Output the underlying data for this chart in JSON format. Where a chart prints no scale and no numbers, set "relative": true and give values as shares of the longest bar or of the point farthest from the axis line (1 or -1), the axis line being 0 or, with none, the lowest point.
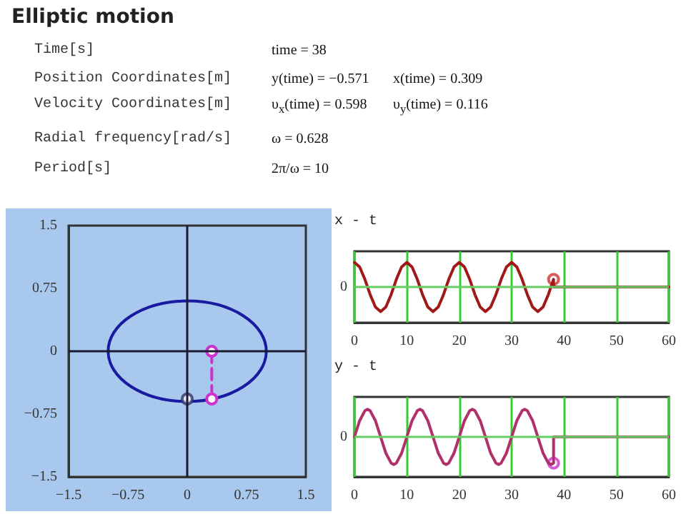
{
  "chart_data": [
    {
      "type": "other",
      "title": "Elliptic motion",
      "annotations": [
        "Time[s]",
        "time = 38",
        "Position Coordinates[m]",
        "y(time) = −0.571",
        "x(time) = 0.309",
        "Velocity Coordinates[m]",
        "υ$_{x}$(time) = 0.598",
        "υ$_{y}$(time) = 0.116",
        "Radial frequency[rad/s]",
        "ω = 0.628",
        "Period[s]",
        "2π/ω = 10"
      ]
    },
    {
      "type": "line",
      "xlim": [
        -1.5,
        1.5
      ],
      "xticks": [
        -1.5,
        -0.75,
        0,
        0.75,
        1.5
      ],
      "ylim": [
        -1.5,
        1.5
      ],
      "yticks": [
        -1.5,
        -0.75,
        0,
        0.75,
        1.5
      ],
      "grid": false,
      "ref_lines": [
        {
          "axis": "x",
          "value": 0,
          "color": "#1a1a33"
        },
        {
          "axis": "y",
          "value": 0,
          "color": "#1a1a33"
        }
      ],
      "series": [
        {
          "color": "#cc33cc",
          "marker": "circle",
          "line_style": "dashed",
          "x": [
            0.31,
            0.31
          ],
          "values": [
            0,
            -0.57
          ]
        },
        {
          "type": "scatter",
          "color": "#333366",
          "marker": "circle",
          "x": [
            0
          ],
          "values": [
            -0.57
          ]
        }
      ]
    },
    {
      "type": "line",
      "title": "x - t",
      "relative": true,
      "xlim": [
        0,
        60
      ],
      "xticks": [
        0,
        10,
        20,
        30,
        40,
        50,
        60
      ],
      "grid": "x",
      "tick_labels": "x",
      "ref_lines": [
        {
          "axis": "y",
          "value": 0,
          "label": "0",
          "color": "#66cc66"
        }
      ],
      "series": [
        {
          "color": "#a01818",
          "marker": "none",
          "x": [
            0,
            1,
            2,
            3,
            4,
            5,
            6,
            7,
            8,
            9,
            10,
            11,
            12,
            13,
            14,
            15,
            16,
            17,
            18,
            19,
            20,
            21,
            22,
            23,
            24,
            25,
            26,
            27,
            28,
            29,
            30,
            31,
            32,
            33,
            34,
            35,
            36,
            37,
            38,
            38,
            60
          ],
          "values": [
            1,
            0.81,
            0.31,
            -0.31,
            -0.81,
            -1,
            -0.81,
            -0.31,
            0.31,
            0.81,
            1,
            0.81,
            0.31,
            -0.31,
            -0.81,
            -1,
            -0.81,
            -0.31,
            0.31,
            0.81,
            1,
            0.81,
            0.31,
            -0.31,
            -0.81,
            -1,
            -0.81,
            -0.31,
            0.31,
            0.81,
            1,
            0.81,
            0.31,
            -0.31,
            -0.81,
            -1,
            -0.81,
            -0.31,
            0.31,
            0,
            0
          ]
        },
        {
          "type": "scatter",
          "color": "#cc3333",
          "marker": "circle",
          "x": [
            38
          ],
          "values": [
            0.31
          ]
        }
      ]
    },
    {
      "type": "line",
      "title": "y - t",
      "relative": true,
      "xlim": [
        0,
        60
      ],
      "xticks": [
        0,
        10,
        20,
        30,
        40,
        50,
        60
      ],
      "grid": "x",
      "tick_labels": "x",
      "ref_lines": [
        {
          "axis": "y",
          "value": 0,
          "label": "0",
          "color": "#66cc66"
        }
      ],
      "series": [
        {
          "color": "#b0306a",
          "marker": "none",
          "x": [
            0,
            1,
            2,
            2.5,
            3,
            4,
            5,
            6,
            7,
            7.5,
            8,
            9,
            10,
            11,
            12,
            12.5,
            13,
            14,
            15,
            16,
            17,
            17.5,
            18,
            19,
            20,
            21,
            22,
            22.5,
            23,
            24,
            25,
            26,
            27,
            27.5,
            28,
            29,
            30,
            31,
            32,
            32.5,
            33,
            34,
            35,
            36,
            37,
            37.5,
            38,
            38,
            60
          ],
          "values": [
            0,
            0.59,
            0.95,
            1,
            0.95,
            0.59,
            0,
            -0.59,
            -0.95,
            -1,
            -0.95,
            -0.59,
            0,
            0.59,
            0.95,
            1,
            0.95,
            0.59,
            0,
            -0.59,
            -0.95,
            -1,
            -0.95,
            -0.59,
            0,
            0.59,
            0.95,
            1,
            0.95,
            0.59,
            0,
            -0.59,
            -0.95,
            -1,
            -0.95,
            -0.59,
            0,
            0.59,
            0.95,
            1,
            0.95,
            0.59,
            0,
            -0.59,
            -0.95,
            -1,
            -0.95,
            0,
            0
          ]
        },
        {
          "type": "scatter",
          "color": "#cc33cc",
          "marker": "circle",
          "x": [
            38
          ],
          "values": [
            -0.95
          ]
        }
      ]
    }
  ]
}
